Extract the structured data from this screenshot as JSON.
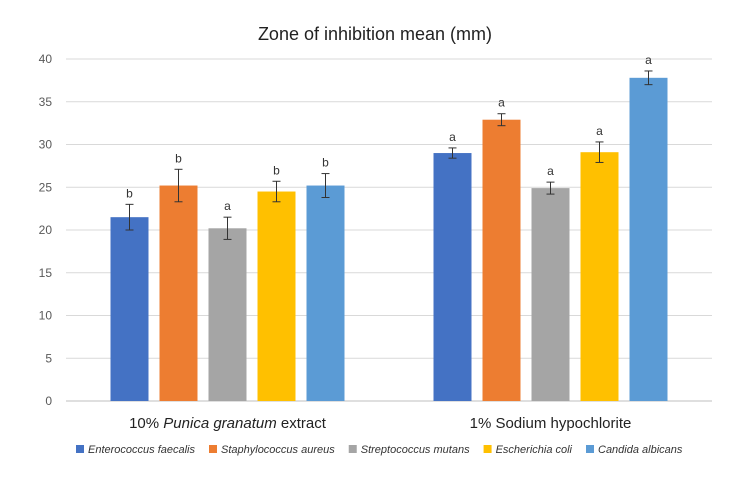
{
  "chart_data": {
    "type": "bar",
    "title": "Zone of inhibition mean (mm)",
    "xlabel": "",
    "ylabel": "",
    "ylim": [
      0,
      40
    ],
    "yticks": [
      0,
      5,
      10,
      15,
      20,
      25,
      30,
      35,
      40
    ],
    "grid": true,
    "legend": "bottom",
    "groups": [
      {
        "pre": "10% ",
        "italic": "Punica granatum",
        "post": " extract"
      },
      {
        "pre": "1% Sodium hypochlorite",
        "italic": "",
        "post": ""
      }
    ],
    "series": [
      {
        "name": "Enterococcus faecalis",
        "color": "#4472C4",
        "values": [
          21.5,
          29.0
        ],
        "errors": [
          1.5,
          0.6
        ],
        "labels": [
          "b",
          "a"
        ]
      },
      {
        "name": "Staphylococcus aureus",
        "color": "#ED7D31",
        "values": [
          25.2,
          32.9
        ],
        "errors": [
          1.9,
          0.7
        ],
        "labels": [
          "b",
          "a"
        ]
      },
      {
        "name": "Streptococcus mutans",
        "color": "#A5A5A5",
        "values": [
          20.2,
          24.9
        ],
        "errors": [
          1.3,
          0.7
        ],
        "labels": [
          "a",
          "a"
        ]
      },
      {
        "name": "Escherichia coli",
        "color": "#FFC000",
        "values": [
          24.5,
          29.1
        ],
        "errors": [
          1.2,
          1.2
        ],
        "labels": [
          "b",
          "a"
        ]
      },
      {
        "name": "Candida albicans",
        "color": "#5B9BD5",
        "values": [
          25.2,
          37.8
        ],
        "errors": [
          1.4,
          0.8
        ],
        "labels": [
          "b",
          "a"
        ]
      }
    ]
  }
}
